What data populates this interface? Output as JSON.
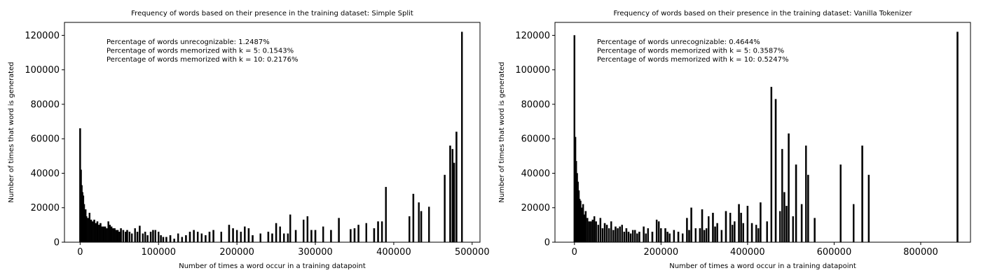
{
  "chart_data": [
    {
      "type": "bar",
      "title": "Frequency of words based on their presence in the training dataset: Simple Split",
      "xlabel": "Number of times a word occur in a training datapoint",
      "ylabel": "Number of times that word is generated",
      "xlim": [
        -20000,
        510000
      ],
      "ylim": [
        0,
        127500
      ],
      "xticks": [
        0,
        100000,
        200000,
        300000,
        400000,
        500000
      ],
      "yticks": [
        0,
        20000,
        40000,
        60000,
        80000,
        100000,
        120000
      ],
      "annotations": [
        "Percentage of words unrecognizable: 1.2487%",
        "Percentage of words memorized with k = 5: 0.1543%",
        "Percentage of words memorized with k = 10: 0.2176%"
      ],
      "grid": false,
      "bar_color": "#000000",
      "x": [
        0,
        1000,
        2000,
        3000,
        4000,
        5000,
        6000,
        7000,
        8000,
        10000,
        12000,
        14000,
        16000,
        18000,
        20000,
        22000,
        24000,
        26000,
        28000,
        30000,
        32000,
        34000,
        36000,
        38000,
        40000,
        42000,
        44000,
        46000,
        48000,
        50000,
        52000,
        55000,
        58000,
        60000,
        63000,
        66000,
        70000,
        73000,
        76000,
        80000,
        83000,
        86000,
        90000,
        93000,
        96000,
        100000,
        103000,
        106000,
        110000,
        115000,
        120000,
        125000,
        130000,
        135000,
        140000,
        145000,
        150000,
        155000,
        160000,
        165000,
        170000,
        180000,
        190000,
        195000,
        200000,
        205000,
        210000,
        215000,
        220000,
        230000,
        240000,
        245000,
        250000,
        255000,
        260000,
        265000,
        268000,
        275000,
        285000,
        290000,
        295000,
        300000,
        310000,
        320000,
        330000,
        345000,
        350000,
        355000,
        365000,
        375000,
        380000,
        385000,
        390000,
        420000,
        425000,
        432000,
        435000,
        445000,
        465000,
        472000,
        475000,
        477000,
        480000,
        487000
      ],
      "values": [
        66000,
        42000,
        33000,
        29000,
        27000,
        22000,
        18000,
        19000,
        15000,
        14000,
        17000,
        13000,
        12000,
        13000,
        11000,
        12000,
        10000,
        11000,
        9000,
        9000,
        9000,
        8000,
        12000,
        10000,
        9000,
        8000,
        8000,
        7000,
        7000,
        6000,
        8000,
        7000,
        6000,
        7000,
        6000,
        5000,
        8000,
        6000,
        9500,
        5000,
        6000,
        4000,
        6000,
        7000,
        7000,
        6000,
        4000,
        3000,
        3000,
        4000,
        2000,
        5000,
        3000,
        4000,
        6000,
        7000,
        6000,
        5000,
        4000,
        6000,
        7000,
        6000,
        10000,
        8000,
        7000,
        6000,
        9000,
        8000,
        4000,
        5000,
        6000,
        5000,
        11000,
        9000,
        5000,
        5000,
        16000,
        7000,
        13000,
        15000,
        7000,
        7000,
        9000,
        7000,
        14000,
        7500,
        8000,
        10000,
        11000,
        8000,
        12000,
        12000,
        32000,
        15000,
        28000,
        23000,
        18000,
        20500,
        39000,
        56000,
        54000,
        46000,
        64000,
        122000
      ]
    },
    {
      "type": "bar",
      "title": "Frequency of words based on their presence in the training dataset: Vanilla Tokenizer",
      "xlabel": "Number of times a word occur in a training datapoint",
      "ylabel": "Number of times that word is generated",
      "xlim": [
        -45000,
        915000
      ],
      "ylim": [
        0,
        127500
      ],
      "xticks": [
        0,
        200000,
        400000,
        600000,
        800000
      ],
      "yticks": [
        0,
        20000,
        40000,
        60000,
        80000,
        100000,
        120000
      ],
      "annotations": [
        "Percentage of words unrecognizable: 0.4644%",
        "Percentage of words memorized with k = 5: 0.3587%",
        "Percentage of words memorized with k = 10: 0.5247%"
      ],
      "grid": false,
      "bar_color": "#000000",
      "x": [
        0,
        2000,
        4000,
        6000,
        8000,
        10000,
        12000,
        14000,
        17000,
        20000,
        23000,
        26000,
        30000,
        34000,
        38000,
        42000,
        46000,
        50000,
        55000,
        60000,
        65000,
        70000,
        75000,
        80000,
        85000,
        90000,
        95000,
        100000,
        105000,
        110000,
        115000,
        120000,
        125000,
        130000,
        135000,
        140000,
        145000,
        150000,
        160000,
        165000,
        170000,
        180000,
        190000,
        195000,
        200000,
        210000,
        215000,
        220000,
        230000,
        240000,
        250000,
        260000,
        265000,
        270000,
        280000,
        290000,
        295000,
        300000,
        305000,
        310000,
        320000,
        325000,
        330000,
        340000,
        350000,
        360000,
        365000,
        370000,
        380000,
        385000,
        390000,
        400000,
        410000,
        420000,
        425000,
        430000,
        445000,
        455000,
        465000,
        475000,
        480000,
        485000,
        490000,
        495000,
        505000,
        512000,
        525000,
        535000,
        540000,
        555000,
        615000,
        645000,
        665000,
        680000,
        885000
      ],
      "values": [
        120000,
        61000,
        47000,
        40000,
        35000,
        30000,
        25000,
        24000,
        20000,
        22000,
        16000,
        18000,
        14000,
        12000,
        12000,
        13000,
        15000,
        12000,
        10000,
        14000,
        8000,
        11000,
        10000,
        8000,
        12000,
        7000,
        9000,
        8000,
        9000,
        10000,
        6000,
        8000,
        6000,
        5000,
        7000,
        7000,
        5000,
        6000,
        9000,
        5000,
        8000,
        6000,
        13000,
        12000,
        8000,
        8000,
        6000,
        5000,
        7000,
        6000,
        5000,
        14000,
        7000,
        20000,
        8000,
        8000,
        19000,
        7000,
        8000,
        15000,
        17000,
        9000,
        11000,
        7000,
        18000,
        17000,
        10000,
        12000,
        22000,
        17000,
        11000,
        21000,
        11000,
        10000,
        8000,
        23000,
        12000,
        90000,
        83000,
        18000,
        54000,
        29000,
        21000,
        63000,
        15000,
        45000,
        22000,
        56000,
        39000,
        14000,
        45000,
        22000,
        56000,
        39000,
        122000
      ]
    }
  ]
}
